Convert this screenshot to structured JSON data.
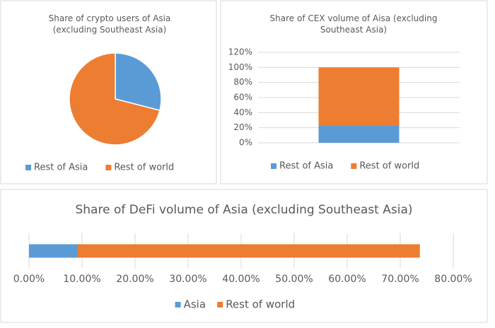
{
  "chart_data": [
    {
      "type": "pie",
      "title": "Share of crypto users of Asia (excluding Southeast Asia)",
      "categories": [
        "Rest of Asia",
        "Rest of world"
      ],
      "values": [
        29,
        71
      ],
      "colors": [
        "#5b9bd5",
        "#ed7d31"
      ],
      "legend": "bottom"
    },
    {
      "type": "bar",
      "stacked": true,
      "horizontal": false,
      "title": "Share of CEX volume of Aisa (excluding Southeast Asia)",
      "series": [
        {
          "name": "Rest of Asia",
          "color": "#5b9bd5",
          "values": [
            23
          ]
        },
        {
          "name": "Rest of world",
          "color": "#ed7d31",
          "values": [
            77
          ]
        }
      ],
      "ylim": [
        0,
        120
      ],
      "yticks": [
        {
          "value": 0,
          "label": "0%"
        },
        {
          "value": 20,
          "label": "20%"
        },
        {
          "value": 40,
          "label": "40%"
        },
        {
          "value": 60,
          "label": "60%"
        },
        {
          "value": 80,
          "label": "80%"
        },
        {
          "value": 100,
          "label": "100%"
        },
        {
          "value": 120,
          "label": "120%"
        }
      ],
      "grid": true,
      "legend": "bottom"
    },
    {
      "type": "bar",
      "stacked": true,
      "horizontal": true,
      "title": "Share of DeFi volume of Asia (excluding Southeast Asia)",
      "series": [
        {
          "name": "Asia",
          "color": "#5b9bd5",
          "values": [
            9.2
          ]
        },
        {
          "name": "Rest of world",
          "color": "#ed7d31",
          "values": [
            64.5
          ]
        }
      ],
      "xlim": [
        0,
        80
      ],
      "xticks": [
        {
          "value": 0,
          "label": "0.00%"
        },
        {
          "value": 10,
          "label": "10.00%"
        },
        {
          "value": 20,
          "label": "20.00%"
        },
        {
          "value": 30,
          "label": "30.00%"
        },
        {
          "value": 40,
          "label": "40.00%"
        },
        {
          "value": 50,
          "label": "50.00%"
        },
        {
          "value": 60,
          "label": "60.00%"
        },
        {
          "value": 70,
          "label": "70.00%"
        },
        {
          "value": 80,
          "label": "80.00%"
        }
      ],
      "grid": true,
      "legend": "bottom"
    }
  ]
}
